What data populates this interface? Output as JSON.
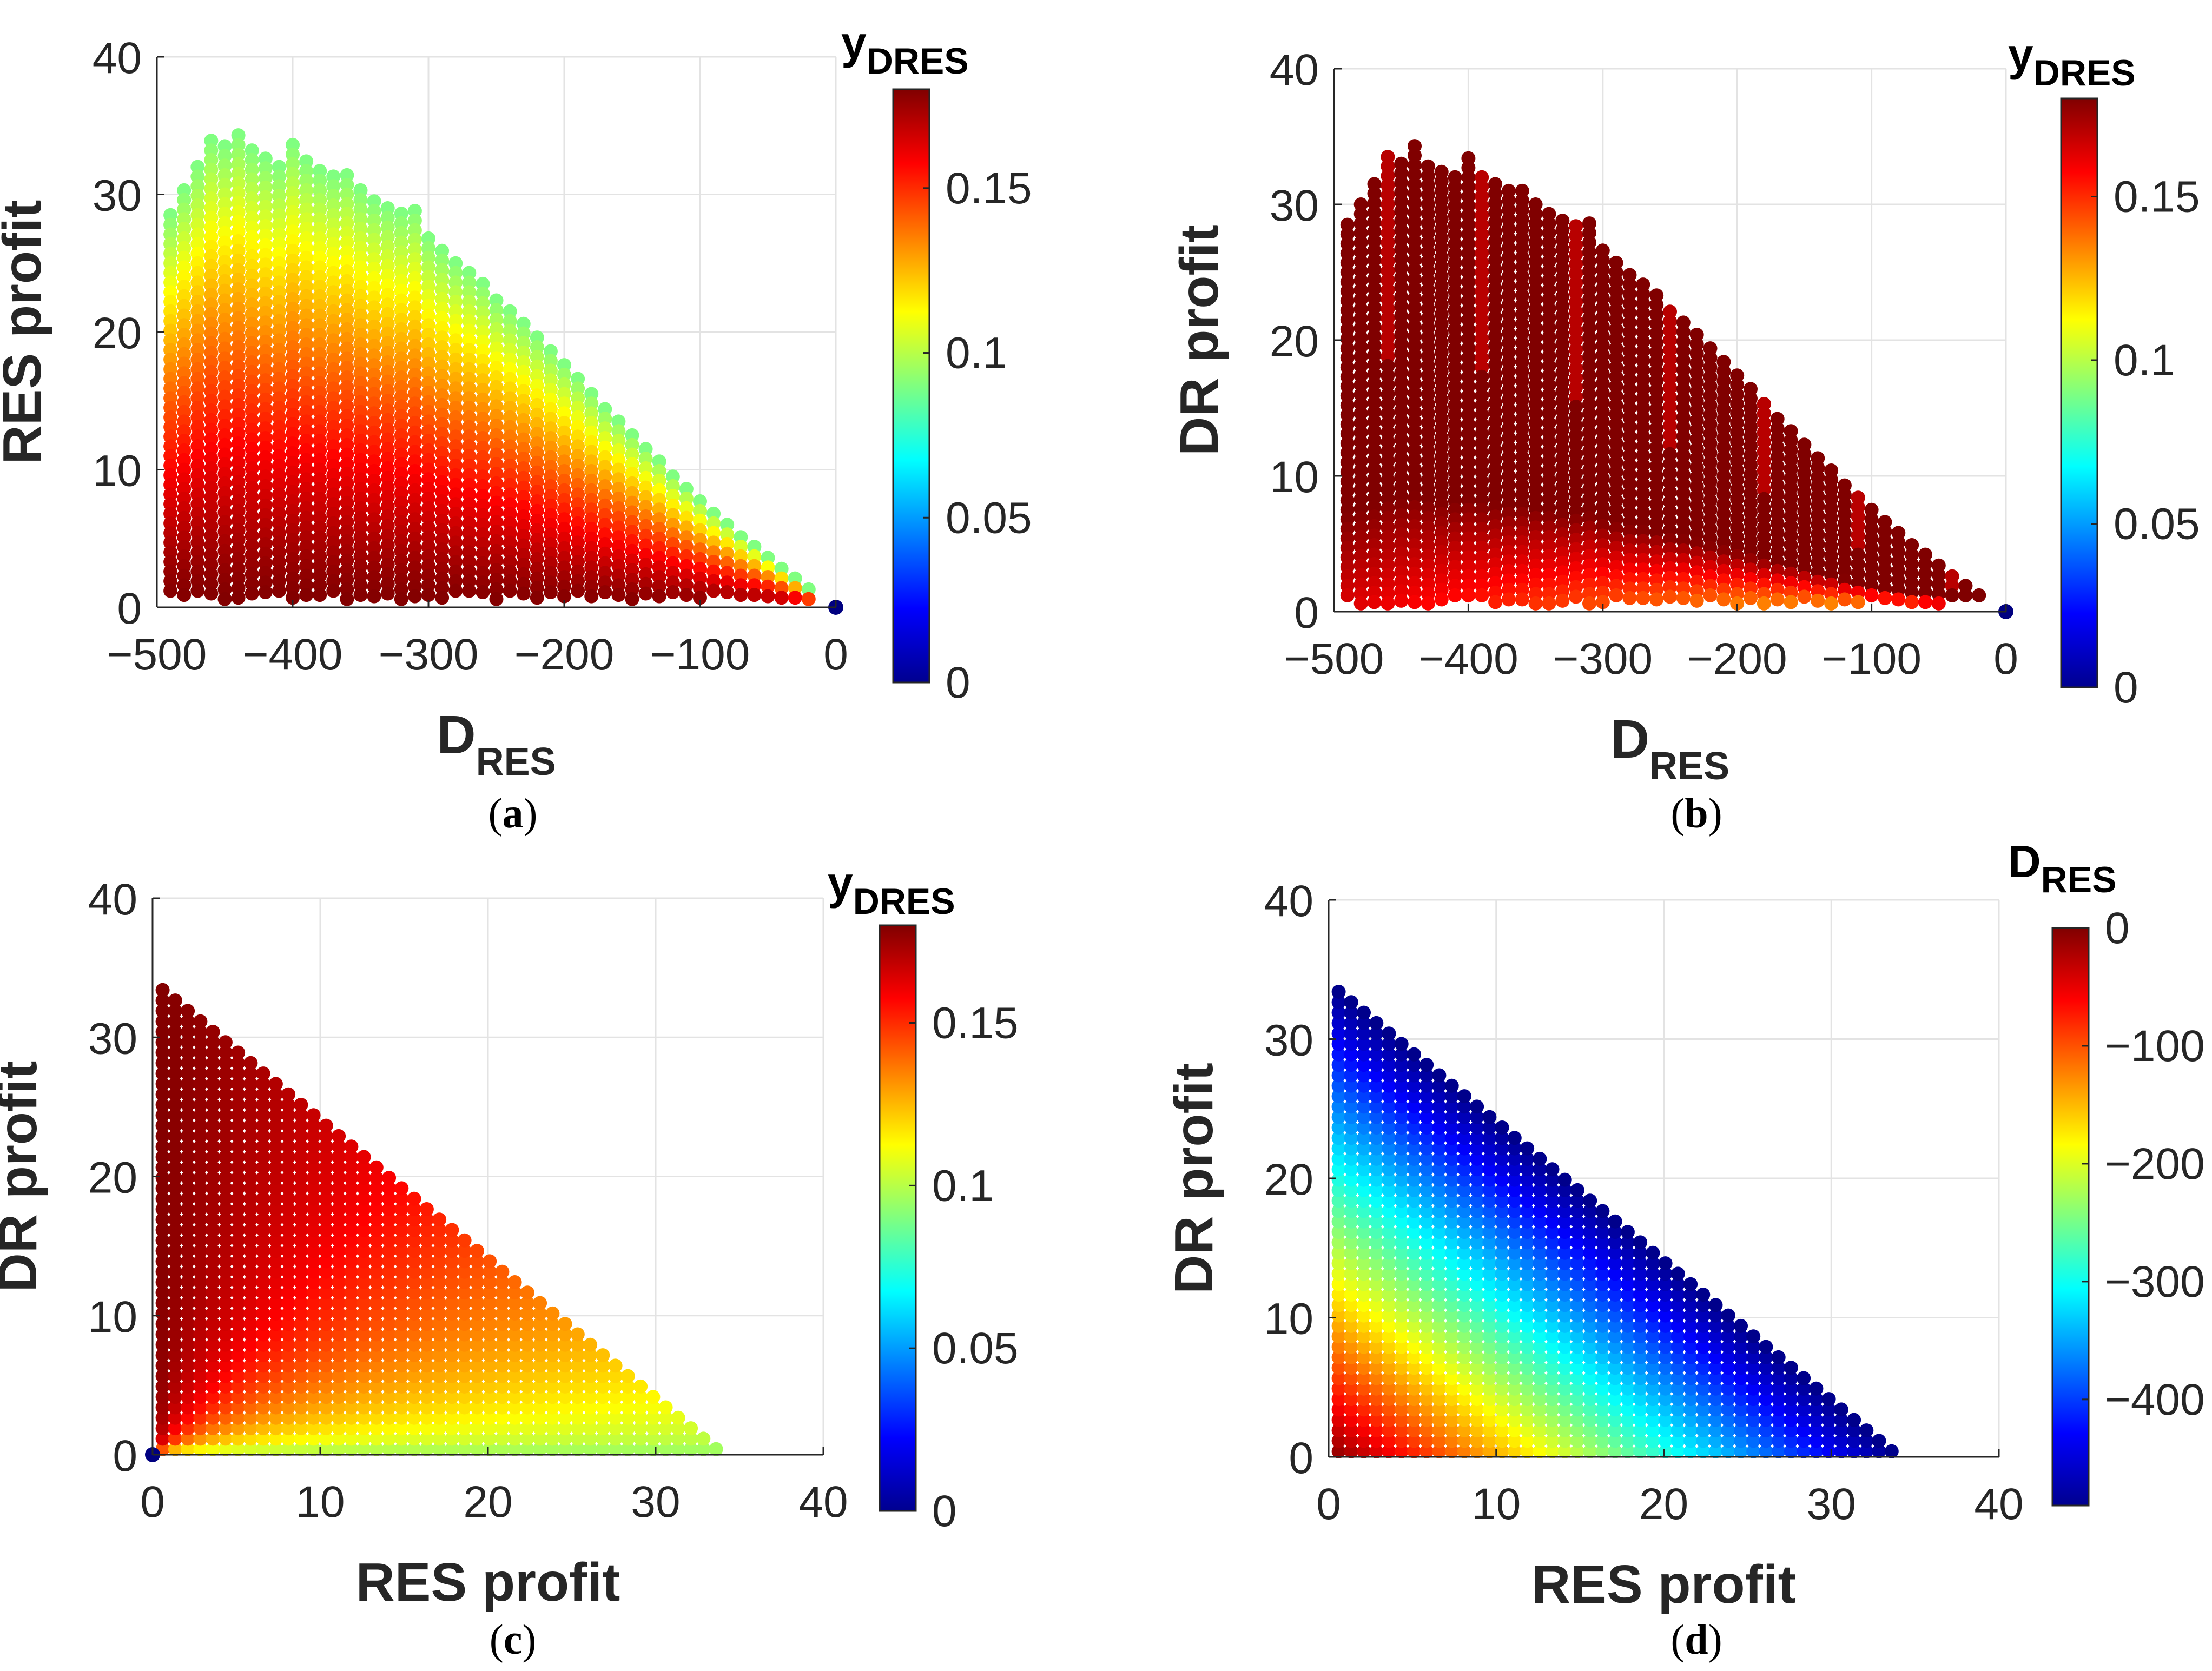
{
  "figure": {
    "panels": [
      {
        "id": "a",
        "caption_open": "(",
        "caption_letter": "a",
        "caption_close": ")",
        "xlabel_main": "D",
        "xlabel_sub": "RES",
        "ylabel": "RES profit",
        "colorbar_title_main": "y",
        "colorbar_title_sub": "DRES"
      },
      {
        "id": "b",
        "caption_open": "(",
        "caption_letter": "b",
        "caption_close": ")",
        "xlabel_main": "D",
        "xlabel_sub": "RES",
        "ylabel": "DR profit",
        "colorbar_title_main": "y",
        "colorbar_title_sub": "DRES"
      },
      {
        "id": "c",
        "caption_open": "(",
        "caption_letter": "c",
        "caption_close": ")",
        "xlabel_main": "RES profit",
        "xlabel_sub": "",
        "ylabel": "DR profit",
        "colorbar_title_main": "y",
        "colorbar_title_sub": "DRES"
      },
      {
        "id": "d",
        "caption_open": "(",
        "caption_letter": "d",
        "caption_close": ")",
        "xlabel_main": "RES profit",
        "xlabel_sub": "",
        "ylabel": "DR profit",
        "colorbar_title_main": "D",
        "colorbar_title_sub": "RES"
      }
    ]
  },
  "chart_data": [
    {
      "panel": "a",
      "type": "scatter",
      "xlabel": "D_RES",
      "ylabel": "RES profit",
      "colorbar_label": "y_DRES",
      "colormap": "jet",
      "xlim": [
        -500,
        0
      ],
      "ylim": [
        0,
        40
      ],
      "xticks": [
        -500,
        -400,
        -300,
        -200,
        -100,
        0
      ],
      "yticks": [
        0,
        10,
        20,
        30,
        40
      ],
      "xtick_labels": [
        "−500",
        "−400",
        "−300",
        "−200",
        "−100",
        "0"
      ],
      "ytick_labels": [
        "0",
        "10",
        "20",
        "30",
        "40"
      ],
      "clim": [
        0,
        0.18
      ],
      "cticks": [
        0,
        0.05,
        0.1,
        0.15
      ],
      "ctick_labels": [
        "0",
        "0.05",
        "0.1",
        "0.15"
      ],
      "grid": true,
      "envelope": {
        "x": [
          -490,
          -480,
          -470,
          -460,
          -450,
          -440,
          -430,
          -420,
          -410,
          -400,
          -390,
          -380,
          -370,
          -360,
          -350,
          -340,
          -330,
          -320,
          -310,
          -300,
          -290,
          -280,
          -270,
          -260,
          -250,
          -240,
          -230,
          -220,
          -210,
          -200,
          -190,
          -180,
          -170,
          -160,
          -150,
          -140,
          -130,
          -120,
          -110,
          -100,
          -90,
          -80,
          -70,
          -60,
          -50,
          -40,
          -30,
          -20
        ],
        "y": [
          28.5,
          30.3,
          32.0,
          33.9,
          33.5,
          34.3,
          33.2,
          32.6,
          32.0,
          33.6,
          32.4,
          31.7,
          31.3,
          31.4,
          30.3,
          29.5,
          29.0,
          28.6,
          28.8,
          26.8,
          25.9,
          25.0,
          24.3,
          23.5,
          22.3,
          21.5,
          20.6,
          19.6,
          18.6,
          17.6,
          16.6,
          15.5,
          14.4,
          13.5,
          12.5,
          11.5,
          10.6,
          9.5,
          8.6,
          7.7,
          6.8,
          6.0,
          5.1,
          4.4,
          3.6,
          2.8,
          2.1,
          1.3
        ]
      },
      "isolated_point": {
        "x": 0,
        "y": 0,
        "color_value": 0
      },
      "color_rule": "y_DRES ≈ 0.18 at bottom, decreasing toward ≈ 0.09 along the upper envelope"
    },
    {
      "panel": "b",
      "type": "scatter",
      "xlabel": "D_RES",
      "ylabel": "DR profit",
      "colorbar_label": "y_DRES",
      "colormap": "jet",
      "xlim": [
        -500,
        0
      ],
      "ylim": [
        0,
        40
      ],
      "xticks": [
        -500,
        -400,
        -300,
        -200,
        -100,
        0
      ],
      "yticks": [
        0,
        10,
        20,
        30,
        40
      ],
      "xtick_labels": [
        "−500",
        "−400",
        "−300",
        "−200",
        "−100",
        "0"
      ],
      "ytick_labels": [
        "0",
        "10",
        "20",
        "30",
        "40"
      ],
      "clim": [
        0,
        0.18
      ],
      "cticks": [
        0,
        0.05,
        0.1,
        0.15
      ],
      "ctick_labels": [
        "0",
        "0.05",
        "0.1",
        "0.15"
      ],
      "grid": true,
      "envelope": {
        "x": [
          -490,
          -480,
          -470,
          -460,
          -450,
          -440,
          -430,
          -420,
          -410,
          -400,
          -390,
          -380,
          -370,
          -360,
          -350,
          -340,
          -330,
          -320,
          -310,
          -300,
          -290,
          -280,
          -270,
          -260,
          -250,
          -240,
          -230,
          -220,
          -210,
          -200,
          -190,
          -180,
          -170,
          -160,
          -150,
          -140,
          -130,
          -120,
          -110,
          -100,
          -90,
          -80,
          -70,
          -60,
          -50,
          -40,
          -30,
          -20
        ],
        "y": [
          28.5,
          30.0,
          31.5,
          33.5,
          33.0,
          34.3,
          32.8,
          32.4,
          32.0,
          33.4,
          32.0,
          31.5,
          31.0,
          31.0,
          30.0,
          29.3,
          28.8,
          28.4,
          28.6,
          26.6,
          25.7,
          24.8,
          24.1,
          23.3,
          22.1,
          21.3,
          20.4,
          19.4,
          18.4,
          17.4,
          16.4,
          15.3,
          14.2,
          13.3,
          12.3,
          11.3,
          10.4,
          9.3,
          8.4,
          7.5,
          6.6,
          5.8,
          4.9,
          4.2,
          3.4,
          2.6,
          1.9,
          1.2
        ]
      },
      "isolated_point": {
        "x": 0,
        "y": 0,
        "color_value": 0
      },
      "color_rule": "y_DRES ≈ 0.18 over most of the region, dropping toward ≈ 0.12 near DR profit = 0 on the right"
    },
    {
      "panel": "c",
      "type": "scatter",
      "xlabel": "RES profit",
      "ylabel": "DR profit",
      "colorbar_label": "y_DRES",
      "colormap": "jet",
      "xlim": [
        0,
        40
      ],
      "ylim": [
        0,
        40
      ],
      "xticks": [
        0,
        10,
        20,
        30,
        40
      ],
      "yticks": [
        0,
        10,
        20,
        30,
        40
      ],
      "xtick_labels": [
        "0",
        "10",
        "20",
        "30",
        "40"
      ],
      "ytick_labels": [
        "0",
        "10",
        "20",
        "30",
        "40"
      ],
      "clim": [
        0,
        0.18
      ],
      "cticks": [
        0,
        0.05,
        0.1,
        0.15
      ],
      "ctick_labels": [
        "0",
        "0.05",
        "0.1",
        "0.15"
      ],
      "grid": true,
      "region": "triangle bounded by RES profit + DR profit ≈ 34.4",
      "isolated_point": {
        "x": 0,
        "y": 0,
        "color_value": 0
      },
      "color_rule": "y_DRES ≈ 0.18 near RES profit = 0, decreasing toward ≈ 0.09 near DR profit = 0"
    },
    {
      "panel": "d",
      "type": "scatter",
      "xlabel": "RES profit",
      "ylabel": "DR profit",
      "colorbar_label": "D_RES",
      "colormap": "jet",
      "xlim": [
        0,
        40
      ],
      "ylim": [
        0,
        40
      ],
      "xticks": [
        0,
        10,
        20,
        30,
        40
      ],
      "yticks": [
        0,
        10,
        20,
        30,
        40
      ],
      "xtick_labels": [
        "0",
        "10",
        "20",
        "30",
        "40"
      ],
      "ytick_labels": [
        "0",
        "10",
        "20",
        "30",
        "40"
      ],
      "clim": [
        -490,
        0
      ],
      "cticks": [
        -400,
        -300,
        -200,
        -100,
        0
      ],
      "ctick_labels": [
        "−400",
        "−300",
        "−200",
        "−100",
        "0"
      ],
      "grid": true,
      "region": "triangle bounded by RES profit + DR profit ≈ 34.4",
      "color_rule": "D_RES ≈ 0 at the origin, decreasing toward ≈ −490 along the hypotenuse"
    }
  ]
}
